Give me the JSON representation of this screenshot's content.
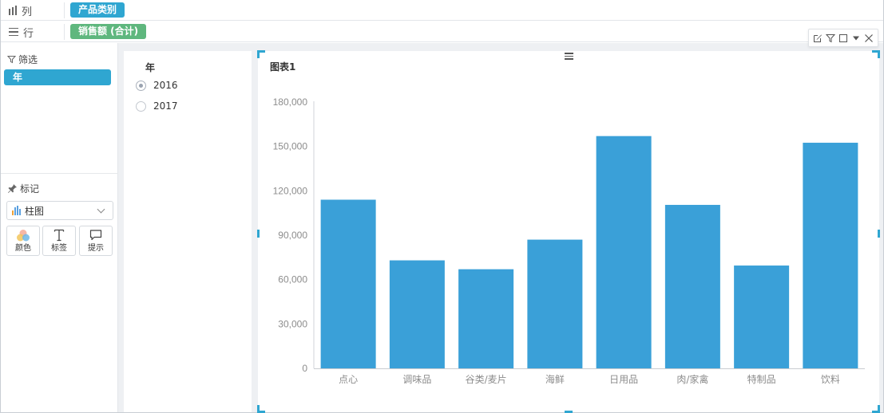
{
  "shelves": {
    "columns": {
      "label": "列",
      "icon": "columns-icon",
      "pill": "产品类别"
    },
    "rows": {
      "label": "行",
      "icon": "rows-icon",
      "pill": "销售额 (合计)"
    }
  },
  "left_panel": {
    "filter_title": "筛选",
    "filter_chip": "年",
    "mark_title": "标记",
    "chart_type": "柱图",
    "mark_buttons": [
      {
        "label": "颜色",
        "icon": "color-icon"
      },
      {
        "label": "标签",
        "icon": "text-label-icon"
      },
      {
        "label": "提示",
        "icon": "tooltip-icon"
      }
    ]
  },
  "filter_panel": {
    "title": "年",
    "options": [
      {
        "label": "2016",
        "selected": true
      },
      {
        "label": "2017",
        "selected": false
      }
    ]
  },
  "chart_card": {
    "title": "图表1",
    "toolbar": [
      "edit-icon",
      "filter-icon",
      "maximize-icon",
      "dropdown-icon",
      "close-icon"
    ]
  },
  "colors": {
    "accent": "#2fa6d1",
    "measure_pill": "#5fb77e",
    "bar": "#3aa0d8"
  },
  "chart_data": {
    "type": "bar",
    "title": "图表1",
    "categories": [
      "点心",
      "调味品",
      "谷类/麦片",
      "海鲜",
      "日用品",
      "肉/家禽",
      "特制品",
      "饮料"
    ],
    "values": [
      114000,
      73000,
      67000,
      87000,
      157000,
      110500,
      69500,
      152500
    ],
    "ylim": [
      0,
      180000
    ],
    "yticks": [
      "0",
      "30,000",
      "60,000",
      "90,000",
      "120,000",
      "150,000",
      "180,000"
    ],
    "ytick_values": [
      0,
      30000,
      60000,
      90000,
      120000,
      150000,
      180000
    ],
    "xlabel": "",
    "ylabel": "",
    "grid": false,
    "legend": "none"
  }
}
